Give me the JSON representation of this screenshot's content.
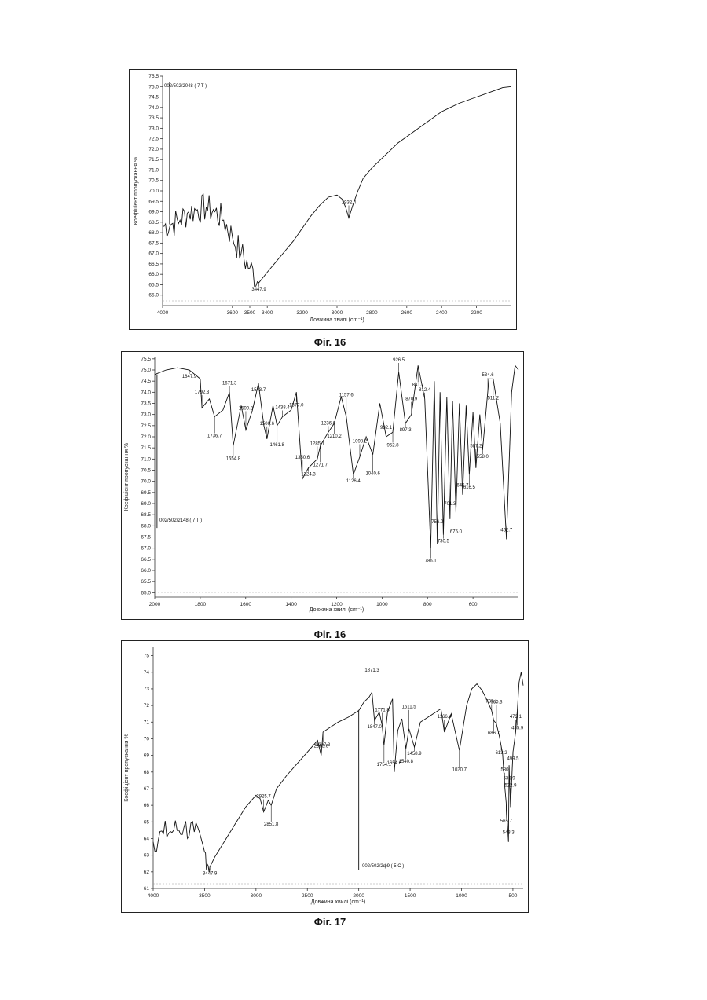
{
  "figures": [
    {
      "caption": "Фіг. 16",
      "sample": "002/502/2048 ( 7 T )",
      "ylabel": "Коефіцієнт пропускання %",
      "xlabel": "Довжина хвилі (cm⁻¹)",
      "xticks": [
        4000,
        3600,
        3500,
        3400,
        3200,
        3000,
        2800,
        2600,
        2400,
        2200
      ],
      "yticks": [
        "75.5",
        "75.0",
        "74.5",
        "74.0",
        "73.5",
        "73.0",
        "72.5",
        "72.0",
        "71.5",
        "71.0",
        "70.5",
        "70.0",
        "69.5",
        "69.0",
        "68.5",
        "68.0",
        "67.5",
        "67.0",
        "66.5",
        "66.0",
        "65.5",
        "65.0"
      ]
    },
    {
      "caption": "Фіг. 16",
      "sample": "002/502/2148 ( 7 T )",
      "ylabel": "Коефіцієнт пропускання %",
      "xlabel": "Довжина хвилі (cm⁻¹)",
      "xticks": [
        2000,
        1800,
        1600,
        1400,
        1200,
        1000,
        800,
        600
      ],
      "yticks": [
        "75.5",
        "75.0",
        "74.5",
        "74.0",
        "73.5",
        "73.0",
        "72.5",
        "72.0",
        "71.5",
        "71.0",
        "70.5",
        "70.0",
        "69.5",
        "69.0",
        "68.5",
        "68.0",
        "67.5",
        "67.0",
        "66.5",
        "66.0",
        "65.5",
        "65.0"
      ]
    },
    {
      "caption": "Фіг. 17",
      "sample": "002/502/2ф9 ( 5 C )",
      "ylabel": "Коефіцієнт пропускання %",
      "xlabel": "Довжина хвилі (cm⁻¹)",
      "xticks": [
        4000,
        3500,
        3000,
        2500,
        2000,
        1500,
        1000,
        500
      ],
      "yticks": [
        "75",
        "74",
        "73",
        "72",
        "71",
        "70",
        "69",
        "68",
        "67",
        "66",
        "65",
        "64",
        "63",
        "62",
        "61"
      ]
    }
  ],
  "chart_data": [
    {
      "type": "line",
      "title": "",
      "xlabel": "Довжина хвилі (cm⁻¹)",
      "ylabel": "Коефіцієнт пропускання %",
      "xlim": [
        4000,
        2000
      ],
      "ylim": [
        64.5,
        75.5
      ],
      "grid": false,
      "series": [
        {
          "name": "002/502/2048 ( 7 T )",
          "x": [
            4000,
            3950,
            3900,
            3850,
            3800,
            3750,
            3700,
            3650,
            3600,
            3550,
            3500,
            3447.9,
            3400,
            3350,
            3300,
            3250,
            3200,
            3150,
            3100,
            3050,
            3000,
            2970,
            2950,
            2932.4,
            2910,
            2880,
            2850,
            2800,
            2750,
            2700,
            2650,
            2600,
            2550,
            2500,
            2450,
            2400,
            2350,
            2300,
            2250,
            2200,
            2150,
            2100,
            2050,
            2000
          ],
          "y": [
            68.3,
            68.4,
            68.6,
            69.0,
            69.1,
            69.2,
            69.0,
            68.6,
            67.8,
            67.0,
            66.3,
            65.6,
            66.1,
            66.6,
            67.1,
            67.6,
            68.2,
            68.8,
            69.3,
            69.7,
            69.8,
            69.6,
            69.2,
            68.7,
            69.3,
            70.0,
            70.6,
            71.1,
            71.5,
            71.9,
            72.3,
            72.6,
            72.9,
            73.2,
            73.5,
            73.8,
            74.0,
            74.2,
            74.35,
            74.5,
            74.65,
            74.8,
            74.95,
            75.0
          ]
        }
      ],
      "peaks": [
        {
          "x": 3447.9,
          "label": "3447.9"
        },
        {
          "x": 2932.4,
          "label": "2932.4"
        }
      ]
    },
    {
      "type": "line",
      "title": "",
      "xlabel": "Довжина хвилі (cm⁻¹)",
      "ylabel": "Коефіцієнт пропускання %",
      "xlim": [
        2000,
        400
      ],
      "ylim": [
        64.8,
        75.6
      ],
      "grid": false,
      "series": [
        {
          "name": "002/502/2148 ( 7 T )",
          "x": [
            2000,
            1950,
            1900,
            1847.9,
            1800,
            1792.3,
            1760,
            1736.7,
            1700,
            1671.3,
            1654.8,
            1620,
            1599.3,
            1570,
            1543.7,
            1520,
            1506.6,
            1480,
            1461.8,
            1438.4,
            1400,
            1377.0,
            1350.6,
            1324.3,
            1285.1,
            1271.7,
            1236.6,
            1210.2,
            1180,
            1157.6,
            1126.4,
            1098.2,
            1070,
            1040.6,
            1010,
            982.1,
            952.8,
            926.5,
            897.3,
            870.9,
            841.7,
            812.4,
            786.1,
            770,
            756.9,
            745,
            730.5,
            715,
            701.3,
            690,
            675.0,
            660,
            645.7,
            630,
            616.5,
            600,
            587.2,
            570,
            558.0,
            530,
            511.2,
            480,
            452.7,
            430,
            415,
            400
          ],
          "y": [
            74.8,
            75.0,
            75.1,
            75.0,
            74.6,
            73.3,
            73.7,
            72.9,
            73.2,
            74.0,
            71.6,
            73.4,
            72.3,
            73.2,
            74.4,
            72.5,
            71.9,
            73.4,
            72.5,
            72.9,
            73.2,
            74.0,
            70.1,
            70.6,
            71.0,
            71.6,
            72.2,
            72.6,
            73.8,
            72.9,
            70.3,
            71.1,
            72.0,
            71.2,
            73.5,
            72.0,
            72.2,
            74.9,
            72.6,
            73.0,
            75.2,
            73.7,
            67.0,
            74.5,
            67.2,
            74.0,
            67.6,
            73.8,
            68.3,
            73.6,
            68.6,
            73.5,
            69.4,
            73.4,
            70.3,
            73.1,
            70.6,
            73.0,
            71.4,
            74.6,
            74.6,
            72.6,
            67.4,
            74.0,
            75.2,
            75.0
          ]
        }
      ],
      "peaks": [
        {
          "x": 1847.9,
          "label": "1847.9"
        },
        {
          "x": 1792.3,
          "label": "1792.3"
        },
        {
          "x": 1736.7,
          "label": "1736.7"
        },
        {
          "x": 1671.3,
          "label": "1671.3"
        },
        {
          "x": 1654.8,
          "label": "1654.8"
        },
        {
          "x": 1599.3,
          "label": "1599.3"
        },
        {
          "x": 1543.7,
          "label": "1543.7"
        },
        {
          "x": 1506.6,
          "label": "1506.6"
        },
        {
          "x": 1461.8,
          "label": "1461.8"
        },
        {
          "x": 1438.4,
          "label": "1438.4"
        },
        {
          "x": 1377.0,
          "label": "1377.0"
        },
        {
          "x": 1350.6,
          "label": "1350.6"
        },
        {
          "x": 1324.3,
          "label": "1324.3"
        },
        {
          "x": 1285.1,
          "label": "1285.1"
        },
        {
          "x": 1271.7,
          "label": "1271.7"
        },
        {
          "x": 1236.6,
          "label": "1236.6"
        },
        {
          "x": 1210.2,
          "label": "1210.2"
        },
        {
          "x": 1157.6,
          "label": "1157.6"
        },
        {
          "x": 1126.4,
          "label": "1126.4"
        },
        {
          "x": 1098.2,
          "label": "1098.2"
        },
        {
          "x": 1040.6,
          "label": "1040.6"
        },
        {
          "x": 982.1,
          "label": "982.1"
        },
        {
          "x": 952.8,
          "label": "952.8"
        },
        {
          "x": 926.5,
          "label": "926.5"
        },
        {
          "x": 897.3,
          "label": "897.3"
        },
        {
          "x": 870.9,
          "label": "870.9"
        },
        {
          "x": 841.7,
          "label": "841.7"
        },
        {
          "x": 812.4,
          "label": "812.4"
        },
        {
          "x": 786.1,
          "label": "786.1"
        },
        {
          "x": 756.9,
          "label": "756.9"
        },
        {
          "x": 730.5,
          "label": "730.5"
        },
        {
          "x": 701.3,
          "label": "701.3"
        },
        {
          "x": 675.0,
          "label": "675.0"
        },
        {
          "x": 645.7,
          "label": "645.7"
        },
        {
          "x": 616.5,
          "label": "616.5"
        },
        {
          "x": 587.2,
          "label": "587.2"
        },
        {
          "x": 558.0,
          "label": "558.0"
        },
        {
          "x": 534.6,
          "label": "534.6"
        },
        {
          "x": 511.2,
          "label": "511.2"
        },
        {
          "x": 452.7,
          "label": "452.7"
        }
      ]
    },
    {
      "type": "line",
      "title": "",
      "xlabel": "Довжина хвилі (cm⁻¹)",
      "ylabel": "Коефіцієнт пропускання %",
      "xlim": [
        4000,
        400
      ],
      "ylim": [
        61,
        75.5
      ],
      "grid": false,
      "series": [
        {
          "name": "002/502/2ф9 ( 5 C )",
          "x": [
            4000,
            3900,
            3800,
            3700,
            3600,
            3500,
            3447.9,
            3400,
            3300,
            3200,
            3100,
            3000,
            2960,
            2925.7,
            2880,
            2851.8,
            2800,
            2700,
            2600,
            2500,
            2400,
            2365.6,
            2347.3,
            2300,
            2200,
            2100,
            2000,
            1950,
            1900,
            1871.3,
            1847.0,
            1800,
            1771.8,
            1754.1,
            1720,
            1671.3,
            1654.6,
            1620,
            1580,
            1540.8,
            1511.5,
            1458.9,
            1400,
            1300,
            1200,
            1166.4,
            1100,
            1020.7,
            950,
            900,
            850,
            800,
            750,
            707.1,
            686.7,
            660.3,
            630,
            600,
            580,
            565.7,
            543.3,
            536.9,
            522.9,
            499.5,
            473.1,
            455.9,
            440,
            420,
            400
          ],
          "y": [
            63.8,
            64.3,
            64.5,
            64.7,
            64.4,
            63.2,
            62.3,
            62.9,
            63.9,
            64.9,
            65.9,
            66.6,
            66.4,
            65.6,
            66.3,
            66.0,
            67.0,
            67.8,
            68.5,
            69.2,
            69.9,
            69.0,
            70.4,
            70.6,
            71.0,
            71.3,
            71.7,
            72.2,
            72.5,
            72.8,
            71.1,
            71.6,
            70.8,
            69.6,
            71.6,
            72.4,
            68.0,
            70.5,
            71.2,
            69.4,
            70.6,
            69.5,
            71.0,
            71.4,
            71.8,
            70.4,
            71.5,
            69.3,
            72.0,
            73.0,
            73.3,
            72.9,
            72.3,
            71.7,
            71.1,
            70.9,
            70.1,
            69.1,
            67.2,
            66.2,
            63.8,
            68.4,
            65.9,
            69.2,
            70.4,
            71.8,
            73.4,
            74.0,
            73.2
          ]
        }
      ],
      "peaks": [
        {
          "x": 3447.9,
          "label": "3447.9"
        },
        {
          "x": 2925.7,
          "label": "2925.7"
        },
        {
          "x": 2851.8,
          "label": "2851.8"
        },
        {
          "x": 2365.6,
          "label": "2365.6"
        },
        {
          "x": 2347.3,
          "label": "2347.3"
        },
        {
          "x": 1871.3,
          "label": "1871.3"
        },
        {
          "x": 1847.0,
          "label": "1847.0"
        },
        {
          "x": 1771.8,
          "label": "1771.8"
        },
        {
          "x": 1754.1,
          "label": "1754.1"
        },
        {
          "x": 1654.6,
          "label": "1654.6"
        },
        {
          "x": 1540.8,
          "label": "1540.8"
        },
        {
          "x": 1511.5,
          "label": "1511.5"
        },
        {
          "x": 1458.9,
          "label": "1458.9"
        },
        {
          "x": 1166.4,
          "label": "1166.4"
        },
        {
          "x": 1020.7,
          "label": "1020.7"
        },
        {
          "x": 707.1,
          "label": "707.1"
        },
        {
          "x": 686.7,
          "label": "686.7"
        },
        {
          "x": 660.3,
          "label": "660.3"
        },
        {
          "x": 613.2,
          "label": "613.2"
        },
        {
          "x": 580,
          "label": "580"
        },
        {
          "x": 565.7,
          "label": "565.7"
        },
        {
          "x": 543.3,
          "label": "543.3"
        },
        {
          "x": 536.9,
          "label": "536.9"
        },
        {
          "x": 522.9,
          "label": "522.9"
        },
        {
          "x": 499.5,
          "label": "499.5"
        },
        {
          "x": 473.1,
          "label": "473.1"
        },
        {
          "x": 455.9,
          "label": "455.9"
        }
      ]
    }
  ]
}
